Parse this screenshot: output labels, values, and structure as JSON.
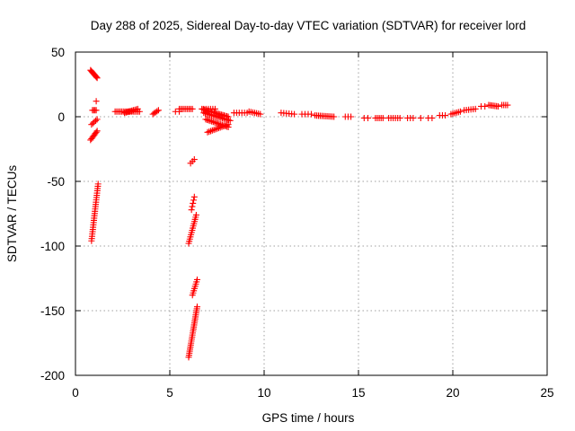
{
  "chart_data": {
    "type": "scatter",
    "title": "Day 288 of 2025, Sidereal Day-to-day VTEC variation (SDTVAR) for receiver lord",
    "xlabel": "GPS time / hours",
    "ylabel": "SDTVAR / TECUs",
    "xlim": [
      0,
      25
    ],
    "ylim": [
      -200,
      50
    ],
    "xticks": [
      0,
      5,
      10,
      15,
      20,
      25
    ],
    "yticks": [
      50,
      0,
      -50,
      -100,
      -150,
      -200
    ],
    "xtick_labels": [
      "0",
      "5",
      "10",
      "15",
      "20",
      "25"
    ],
    "ytick_labels": [
      "50",
      "0",
      "-50",
      "-100",
      "-150",
      "-200"
    ],
    "grid": true,
    "marker": "+",
    "color": "#ff0000",
    "clusters": [
      {
        "x0": 0.8,
        "x1": 1.15,
        "y0": 36,
        "y1": 30,
        "n": 10
      },
      {
        "x0": 0.9,
        "x1": 1.1,
        "y0": 5,
        "y1": 5,
        "n": 4
      },
      {
        "x0": 1.1,
        "x1": 1.1,
        "y0": 12,
        "y1": 12,
        "n": 1
      },
      {
        "x0": 0.85,
        "x1": 1.15,
        "y0": -6,
        "y1": -2,
        "n": 5
      },
      {
        "x0": 0.8,
        "x1": 1.15,
        "y0": -18,
        "y1": -11,
        "n": 8
      },
      {
        "x0": 0.85,
        "x1": 1.2,
        "y0": -96,
        "y1": -52,
        "n": 26
      },
      {
        "x0": 2.1,
        "x1": 3.4,
        "y0": 4,
        "y1": 4,
        "n": 16
      },
      {
        "x0": 2.6,
        "x1": 3.3,
        "y0": 3,
        "y1": 6,
        "n": 10
      },
      {
        "x0": 4.1,
        "x1": 4.4,
        "y0": 2,
        "y1": 5,
        "n": 5
      },
      {
        "x0": 5.3,
        "x1": 5.5,
        "y0": 4,
        "y1": 4,
        "n": 2
      },
      {
        "x0": 5.5,
        "x1": 6.2,
        "y0": 6,
        "y1": 6,
        "n": 9
      },
      {
        "x0": 6.1,
        "x1": 6.3,
        "y0": -36,
        "y1": -33,
        "n": 3
      },
      {
        "x0": 6.15,
        "x1": 6.3,
        "y0": -72,
        "y1": -62,
        "n": 5
      },
      {
        "x0": 6.0,
        "x1": 6.4,
        "y0": -98,
        "y1": -76,
        "n": 14
      },
      {
        "x0": 6.2,
        "x1": 6.45,
        "y0": -138,
        "y1": -126,
        "n": 8
      },
      {
        "x0": 6.0,
        "x1": 6.45,
        "y0": -186,
        "y1": -147,
        "n": 26
      },
      {
        "x0": 6.7,
        "x1": 8.1,
        "y0": 6,
        "y1": 0,
        "n": 20
      },
      {
        "x0": 6.8,
        "x1": 8.2,
        "y0": 3,
        "y1": -3,
        "n": 18
      },
      {
        "x0": 6.9,
        "x1": 8.1,
        "y0": -2,
        "y1": -8,
        "n": 16
      },
      {
        "x0": 7.0,
        "x1": 8.1,
        "y0": -12,
        "y1": -6,
        "n": 14
      },
      {
        "x0": 6.8,
        "x1": 7.4,
        "y0": 6,
        "y1": 6,
        "n": 6
      },
      {
        "x0": 8.4,
        "x1": 9.1,
        "y0": 3,
        "y1": 3,
        "n": 6
      },
      {
        "x0": 9.2,
        "x1": 9.8,
        "y0": 4,
        "y1": 2,
        "n": 7
      },
      {
        "x0": 10.9,
        "x1": 11.6,
        "y0": 3,
        "y1": 2,
        "n": 6
      },
      {
        "x0": 12.0,
        "x1": 12.5,
        "y0": 2,
        "y1": 2,
        "n": 4
      },
      {
        "x0": 12.7,
        "x1": 13.7,
        "y0": 1,
        "y1": 0,
        "n": 12
      },
      {
        "x0": 14.3,
        "x1": 14.6,
        "y0": 0,
        "y1": 0,
        "n": 3
      },
      {
        "x0": 15.3,
        "x1": 15.5,
        "y0": -1,
        "y1": -1,
        "n": 2
      },
      {
        "x0": 15.9,
        "x1": 16.3,
        "y0": -1,
        "y1": -1,
        "n": 5
      },
      {
        "x0": 16.6,
        "x1": 17.2,
        "y0": -1,
        "y1": -1,
        "n": 6
      },
      {
        "x0": 17.6,
        "x1": 17.9,
        "y0": -1,
        "y1": -1,
        "n": 3
      },
      {
        "x0": 18.3,
        "x1": 18.3,
        "y0": -1,
        "y1": -1,
        "n": 1
      },
      {
        "x0": 18.7,
        "x1": 18.9,
        "y0": -1,
        "y1": -1,
        "n": 2
      },
      {
        "x0": 19.3,
        "x1": 19.6,
        "y0": 1,
        "y1": 1,
        "n": 3
      },
      {
        "x0": 19.9,
        "x1": 20.4,
        "y0": 2,
        "y1": 4,
        "n": 6
      },
      {
        "x0": 20.6,
        "x1": 21.2,
        "y0": 5,
        "y1": 6,
        "n": 6
      },
      {
        "x0": 21.5,
        "x1": 21.7,
        "y0": 8,
        "y1": 8,
        "n": 2
      },
      {
        "x0": 21.9,
        "x1": 22.4,
        "y0": 9,
        "y1": 8,
        "n": 7
      },
      {
        "x0": 22.6,
        "x1": 22.9,
        "y0": 9,
        "y1": 9,
        "n": 4
      }
    ]
  }
}
